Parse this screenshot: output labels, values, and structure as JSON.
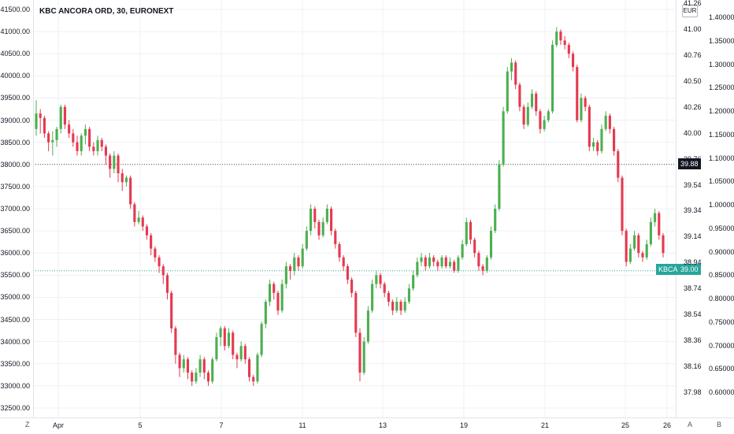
{
  "chart_data": {
    "type": "candlestick",
    "title": "KBC ANCORA ORD, 30, EURONEXT",
    "currency_badge": "EUR",
    "symbol_tag": "KBCA",
    "last_price": "39.00",
    "crosshair_price": "39.88",
    "left_axis": {
      "ticks": [
        "41500.00",
        "41000.00",
        "40500.00",
        "40000.00",
        "39500.00",
        "39000.00",
        "38500.00",
        "38000.00",
        "37500.00",
        "37000.00",
        "36500.00",
        "36000.00",
        "35500.00",
        "35000.00",
        "34500.00",
        "34000.00",
        "33500.00",
        "33000.00",
        "32500.00"
      ],
      "range": [
        32500,
        41500
      ]
    },
    "right_axis_price": {
      "ticks": [
        "41.26",
        "41.00",
        "40.76",
        "40.50",
        "40.26",
        "40.00",
        "39.76",
        "39.54",
        "39.34",
        "39.14",
        "38.94",
        "38.74",
        "38.54",
        "38.36",
        "38.16",
        "37.98"
      ]
    },
    "right_axis_ratio": {
      "ticks": [
        "1.40000",
        "1.35000",
        "1.30000",
        "1.25000",
        "1.20000",
        "1.15000",
        "1.10000",
        "1.05000",
        "1.00000",
        "0.95000",
        "0.90000",
        "0.85000",
        "0.80000",
        "0.75000",
        "0.70000",
        "0.65000",
        "0.60000"
      ],
      "range": [
        0.6,
        1.4
      ]
    },
    "x_ticks": [
      "Apr",
      "5",
      "7",
      "11",
      "13",
      "19",
      "21",
      "25",
      "26"
    ],
    "ylim": [
      32500,
      41500
    ],
    "grid": true,
    "colors": {
      "up": "#26a69a",
      "down": "#ef5350",
      "up_bar": "#4caf50",
      "down_bar": "#e53950",
      "grid": "#eef0f3"
    },
    "candles": [
      [
        38800,
        39150,
        39450,
        38650
      ],
      [
        39150,
        39050,
        39250,
        38700
      ],
      [
        39050,
        38700,
        39100,
        38600
      ],
      [
        38700,
        38500,
        38750,
        38300
      ],
      [
        38500,
        38550,
        38750,
        38200
      ],
      [
        38550,
        38800,
        38850,
        38400
      ],
      [
        38800,
        39300,
        39350,
        38700
      ],
      [
        39300,
        38900,
        39350,
        38800
      ],
      [
        38900,
        38700,
        39000,
        38600
      ],
      [
        38700,
        38500,
        38800,
        38400
      ],
      [
        38500,
        38300,
        38650,
        38200
      ],
      [
        38300,
        38650,
        38700,
        38200
      ],
      [
        38650,
        38800,
        38900,
        38450
      ],
      [
        38800,
        38400,
        38850,
        38300
      ],
      [
        38400,
        38300,
        38500,
        38200
      ],
      [
        38300,
        38550,
        38650,
        38200
      ],
      [
        38550,
        38400,
        38600,
        38300
      ],
      [
        38400,
        38200,
        38450,
        38000
      ],
      [
        38200,
        37900,
        38250,
        37700
      ],
      [
        37900,
        38200,
        38300,
        37800
      ],
      [
        38200,
        37800,
        38250,
        37600
      ],
      [
        37800,
        37600,
        37900,
        37400
      ],
      [
        37600,
        37700,
        37750,
        37500
      ],
      [
        37700,
        37100,
        37750,
        37000
      ],
      [
        37100,
        36700,
        37150,
        36600
      ],
      [
        36700,
        36800,
        36950,
        36650
      ],
      [
        36800,
        36600,
        36850,
        36500
      ],
      [
        36600,
        36400,
        36650,
        36300
      ],
      [
        36400,
        36100,
        36450,
        35950
      ],
      [
        36100,
        35900,
        36150,
        35800
      ],
      [
        35900,
        35700,
        35950,
        35550
      ],
      [
        35700,
        35500,
        35750,
        35300
      ],
      [
        35500,
        35100,
        35550,
        34950
      ],
      [
        35100,
        34300,
        35150,
        34200
      ],
      [
        34300,
        33700,
        34350,
        33500
      ],
      [
        33700,
        33400,
        33750,
        33200
      ],
      [
        33400,
        33600,
        33700,
        33300
      ],
      [
        33600,
        33300,
        33650,
        33150
      ],
      [
        33300,
        33100,
        33350,
        33000
      ],
      [
        33100,
        33300,
        33400,
        33050
      ],
      [
        33300,
        33600,
        33700,
        33200
      ],
      [
        33600,
        33300,
        33650,
        33150
      ],
      [
        33300,
        33100,
        33350,
        33000
      ],
      [
        33100,
        33600,
        33650,
        33050
      ],
      [
        33600,
        34100,
        34200,
        33550
      ],
      [
        34100,
        34300,
        34350,
        33900
      ],
      [
        34300,
        33900,
        34350,
        33800
      ],
      [
        33900,
        34200,
        34300,
        33850
      ],
      [
        34200,
        33700,
        34250,
        33600
      ],
      [
        33700,
        33600,
        33750,
        33400
      ],
      [
        33600,
        33900,
        34000,
        33550
      ],
      [
        33900,
        33600,
        33950,
        33500
      ],
      [
        33600,
        33200,
        33650,
        33100
      ],
      [
        33200,
        33100,
        33250,
        33000
      ],
      [
        33100,
        33700,
        33750,
        33050
      ],
      [
        33700,
        34400,
        34450,
        33650
      ],
      [
        34400,
        34900,
        34950,
        34300
      ],
      [
        34900,
        35300,
        35400,
        34800
      ],
      [
        35300,
        35100,
        35350,
        34950
      ],
      [
        35100,
        34700,
        35150,
        34600
      ],
      [
        34700,
        35300,
        35400,
        34650
      ],
      [
        35300,
        35700,
        35800,
        35200
      ],
      [
        35700,
        35600,
        35750,
        35400
      ],
      [
        35600,
        35900,
        36000,
        35500
      ],
      [
        35900,
        35700,
        35950,
        35600
      ],
      [
        35700,
        36100,
        36200,
        35650
      ],
      [
        36100,
        36500,
        36600,
        36050
      ],
      [
        36500,
        37000,
        37100,
        36400
      ],
      [
        37000,
        36700,
        37050,
        36550
      ],
      [
        36700,
        36400,
        36750,
        36300
      ],
      [
        36400,
        36700,
        36800,
        36350
      ],
      [
        36700,
        37000,
        37100,
        36650
      ],
      [
        37000,
        36500,
        37050,
        36400
      ],
      [
        36500,
        36200,
        36550,
        36100
      ],
      [
        36200,
        35900,
        36250,
        35800
      ],
      [
        35900,
        35700,
        35950,
        35600
      ],
      [
        35700,
        35400,
        35750,
        35300
      ],
      [
        35400,
        35100,
        35450,
        35000
      ],
      [
        35100,
        34200,
        35150,
        34100
      ],
      [
        34200,
        33300,
        34300,
        33100
      ],
      [
        33300,
        34000,
        34100,
        33250
      ],
      [
        34000,
        34700,
        34800,
        33950
      ],
      [
        34700,
        35300,
        35400,
        34650
      ],
      [
        35300,
        35500,
        35600,
        35200
      ],
      [
        35500,
        35300,
        35550,
        35200
      ],
      [
        35300,
        35100,
        35350,
        35000
      ],
      [
        35100,
        34900,
        35150,
        34800
      ],
      [
        34900,
        34700,
        34950,
        34600
      ],
      [
        34700,
        34900,
        35000,
        34650
      ],
      [
        34900,
        34700,
        34950,
        34600
      ],
      [
        34700,
        34900,
        35000,
        34650
      ],
      [
        34900,
        35200,
        35300,
        34850
      ],
      [
        35200,
        35500,
        35600,
        35150
      ],
      [
        35500,
        35800,
        35900,
        35450
      ],
      [
        35800,
        35900,
        36000,
        35700
      ],
      [
        35900,
        35700,
        35950,
        35600
      ],
      [
        35700,
        35900,
        36000,
        35650
      ],
      [
        35900,
        35800,
        35950,
        35700
      ],
      [
        35800,
        35700,
        35850,
        35600
      ],
      [
        35700,
        35900,
        35950,
        35650
      ],
      [
        35900,
        35700,
        35950,
        35650
      ],
      [
        35700,
        35800,
        35900,
        35650
      ],
      [
        35800,
        35600,
        35850,
        35550
      ],
      [
        35600,
        35900,
        35950,
        35550
      ],
      [
        35900,
        36200,
        36300,
        35850
      ],
      [
        36200,
        36700,
        36800,
        36150
      ],
      [
        36700,
        36300,
        36750,
        36200
      ],
      [
        36300,
        36000,
        36350,
        35900
      ],
      [
        36000,
        35700,
        36050,
        35600
      ],
      [
        35700,
        35600,
        35750,
        35500
      ],
      [
        35600,
        35900,
        35950,
        35550
      ],
      [
        35900,
        36500,
        36600,
        35850
      ],
      [
        36500,
        37000,
        37100,
        36450
      ],
      [
        37000,
        38000,
        38100,
        36950
      ],
      [
        38000,
        39200,
        39300,
        37950
      ],
      [
        39200,
        40100,
        40200,
        39150
      ],
      [
        40100,
        40300,
        40400,
        39900
      ],
      [
        40300,
        39800,
        40350,
        39700
      ],
      [
        39800,
        39300,
        39850,
        39200
      ],
      [
        39300,
        38900,
        39350,
        38800
      ],
      [
        38900,
        39300,
        39400,
        38850
      ],
      [
        39300,
        39600,
        39700,
        39250
      ],
      [
        39600,
        39200,
        39650,
        39100
      ],
      [
        39200,
        38800,
        39250,
        38700
      ],
      [
        38800,
        39000,
        39100,
        38750
      ],
      [
        39000,
        39200,
        39250,
        38950
      ],
      [
        39200,
        40700,
        40800,
        39150
      ],
      [
        40700,
        41000,
        41100,
        40650
      ],
      [
        41000,
        40800,
        41050,
        40700
      ],
      [
        40800,
        40700,
        40900,
        40600
      ],
      [
        40700,
        40500,
        40750,
        40400
      ],
      [
        40500,
        40200,
        40550,
        40100
      ],
      [
        40200,
        39000,
        40250,
        38950
      ],
      [
        39000,
        39500,
        39600,
        38950
      ],
      [
        39500,
        39300,
        39550,
        39200
      ],
      [
        39300,
        38400,
        39350,
        38300
      ],
      [
        38400,
        38500,
        38600,
        38300
      ],
      [
        38500,
        38300,
        38550,
        38200
      ],
      [
        38300,
        38800,
        38900,
        38250
      ],
      [
        38800,
        39100,
        39200,
        38750
      ],
      [
        39100,
        38800,
        39150,
        38700
      ],
      [
        38800,
        38300,
        38850,
        38200
      ],
      [
        38300,
        37700,
        38350,
        37600
      ],
      [
        37700,
        36500,
        37750,
        36400
      ],
      [
        36500,
        35800,
        36550,
        35700
      ],
      [
        35800,
        36100,
        36200,
        35750
      ],
      [
        36100,
        36400,
        36500,
        36050
      ],
      [
        36400,
        36000,
        36450,
        35900
      ],
      [
        36000,
        35900,
        36050,
        35800
      ],
      [
        35900,
        36200,
        36300,
        35850
      ],
      [
        36200,
        36700,
        36800,
        36150
      ],
      [
        36700,
        36900,
        37000,
        36600
      ],
      [
        36900,
        36400,
        36950,
        36300
      ],
      [
        36400,
        36000,
        36450,
        35900
      ]
    ]
  }
}
